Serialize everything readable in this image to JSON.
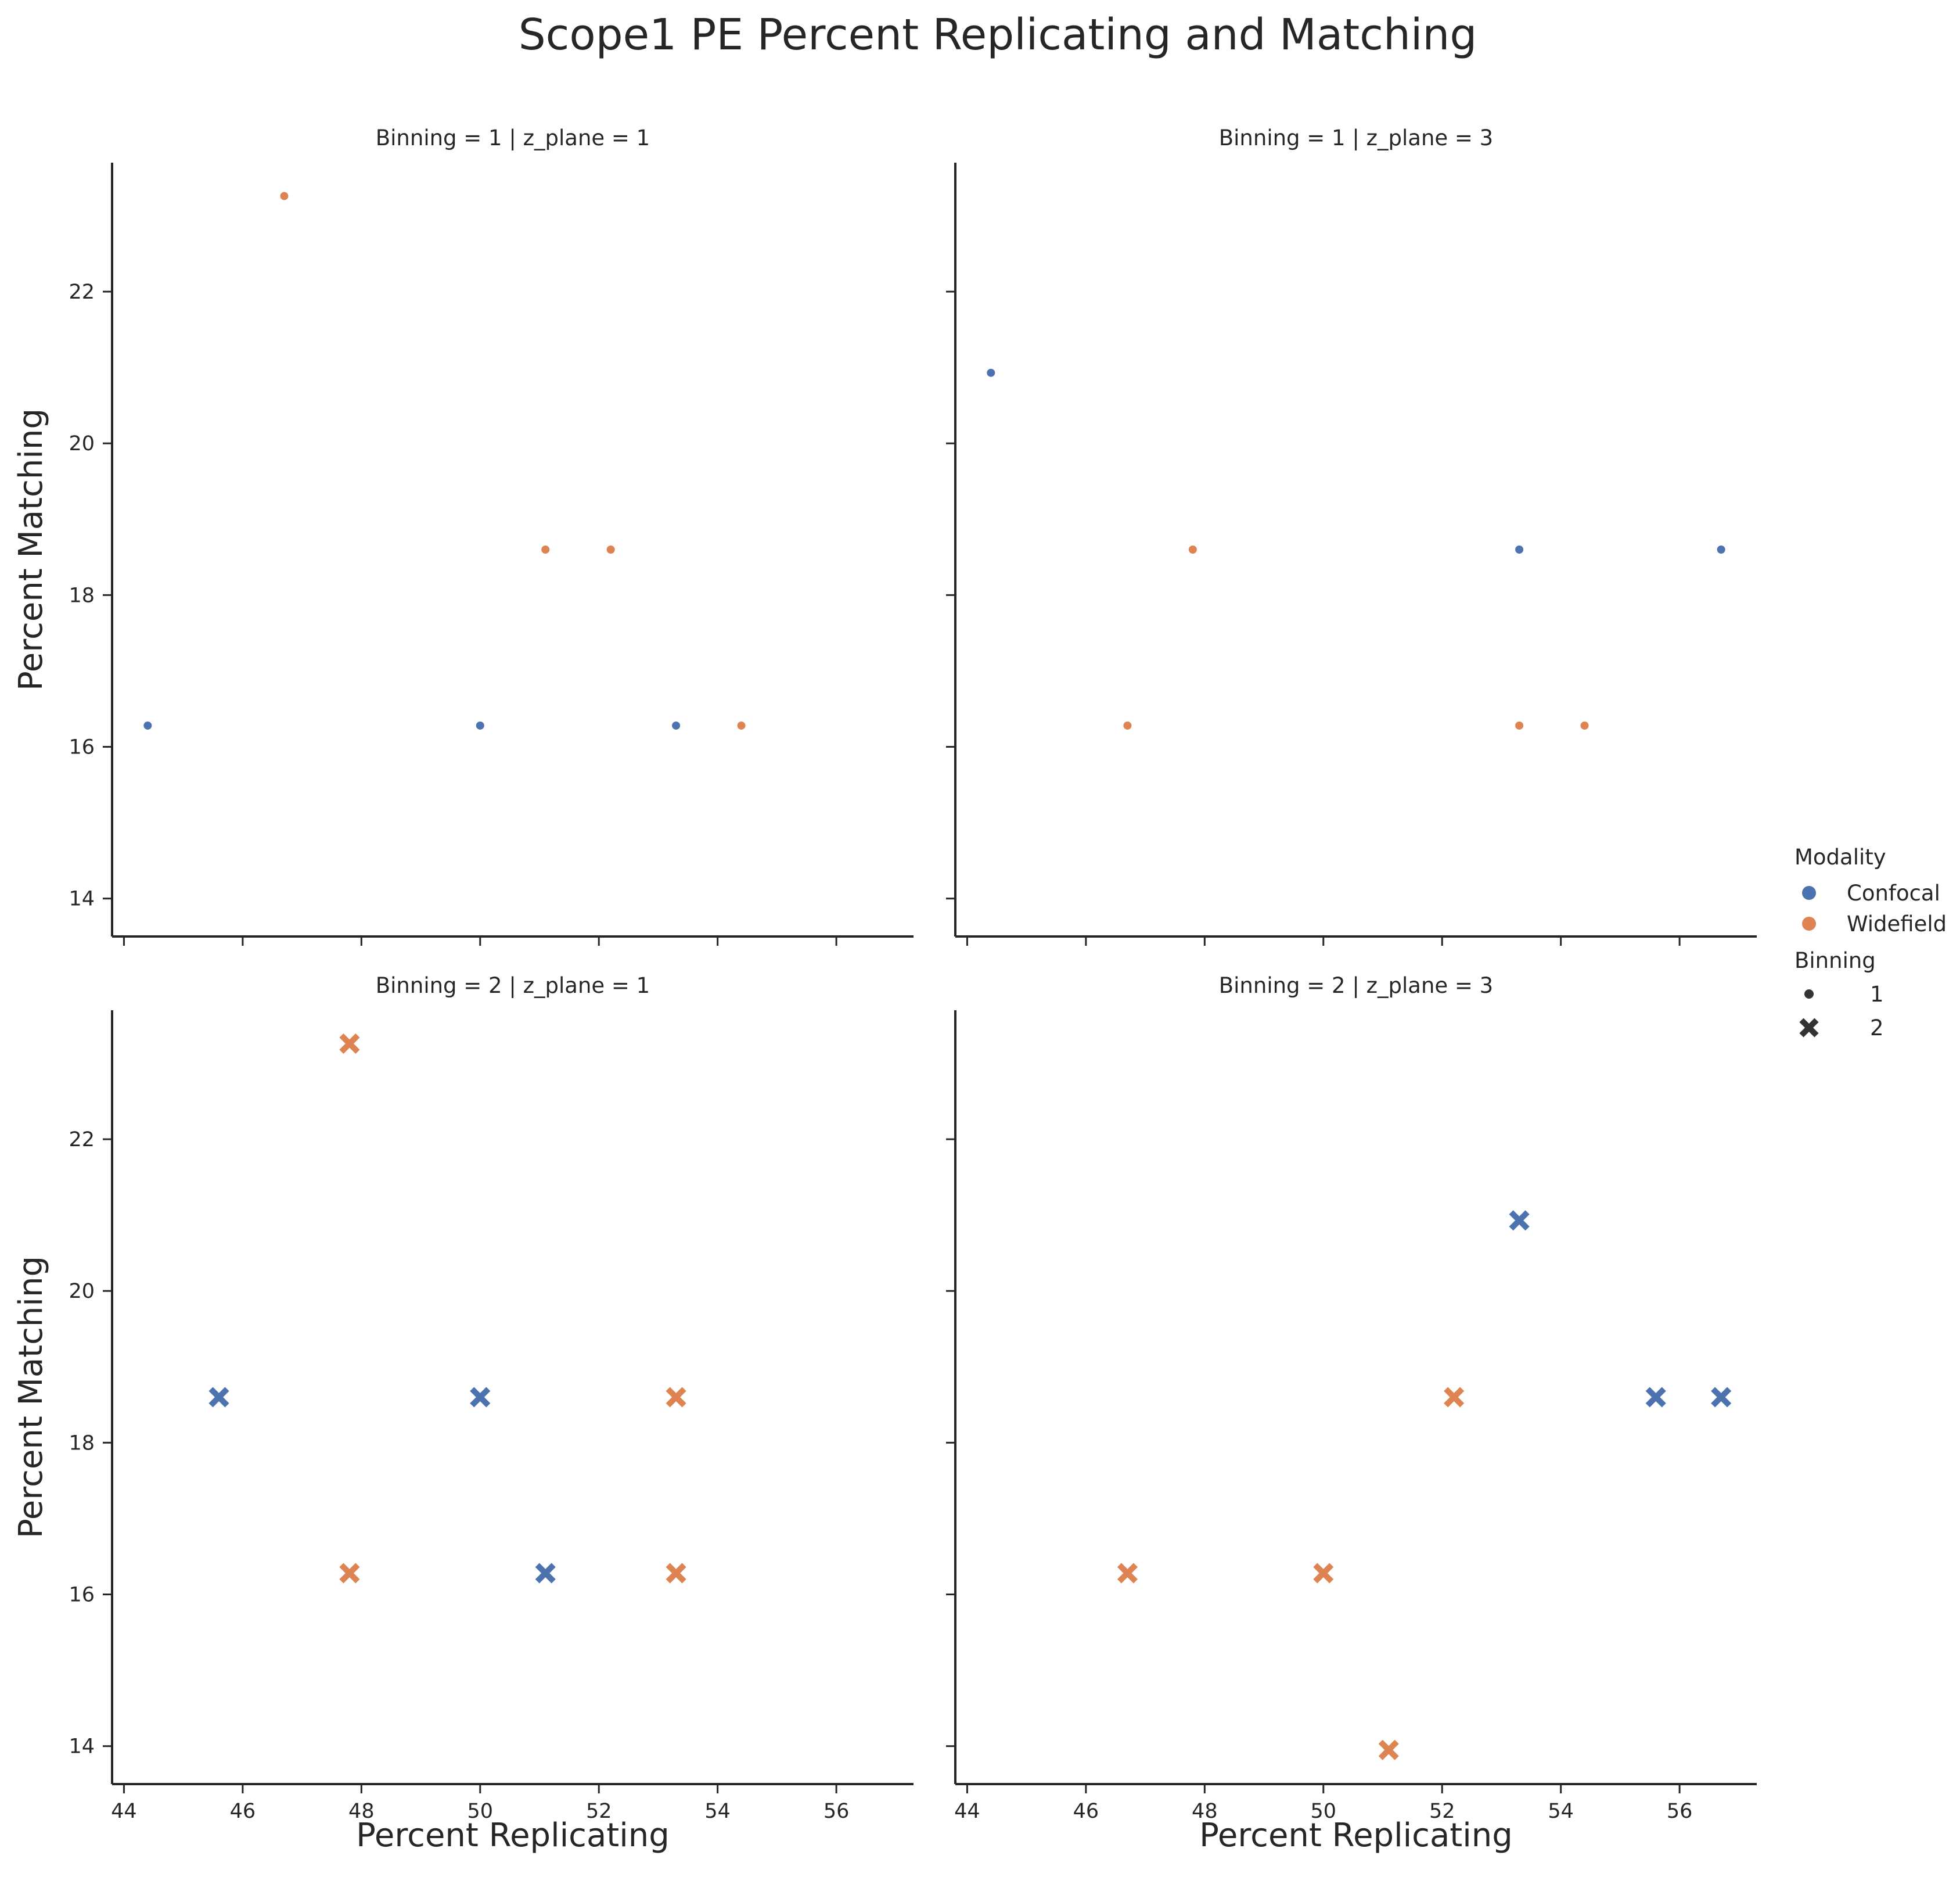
{
  "chart_data": {
    "type": "scatter",
    "title": "Scope1 PE Percent Replicating and Matching",
    "xlabel": "Percent Replicating",
    "ylabel": "Percent Matching",
    "xlim": [
      43.8,
      57.3
    ],
    "ylim": [
      13.5,
      23.7
    ],
    "xticks": [
      44,
      46,
      48,
      50,
      52,
      54,
      56
    ],
    "yticks": [
      14,
      16,
      18,
      20,
      22
    ],
    "grid": false,
    "colors": {
      "Confocal": "#4c72b0",
      "Widefield": "#dd8452"
    },
    "legend": {
      "placement": "right",
      "hue_title": "Modality",
      "hue_entries": [
        "Confocal",
        "Widefield"
      ],
      "style_title": "Binning",
      "style_entries": [
        "1",
        "2"
      ]
    },
    "facets": [
      {
        "title": "Binning = 1 | z_plane = 1",
        "binning": "1",
        "points": [
          {
            "modality": "Widefield",
            "x": 46.7,
            "y": 23.26
          },
          {
            "modality": "Confocal",
            "x": 44.4,
            "y": 16.28
          },
          {
            "modality": "Confocal",
            "x": 50.0,
            "y": 16.28
          },
          {
            "modality": "Widefield",
            "x": 51.1,
            "y": 18.6
          },
          {
            "modality": "Widefield",
            "x": 52.2,
            "y": 18.6
          },
          {
            "modality": "Confocal",
            "x": 53.3,
            "y": 16.28
          },
          {
            "modality": "Widefield",
            "x": 54.4,
            "y": 16.28
          }
        ]
      },
      {
        "title": "Binning = 1 | z_plane = 3",
        "binning": "1",
        "points": [
          {
            "modality": "Confocal",
            "x": 44.4,
            "y": 20.93
          },
          {
            "modality": "Widefield",
            "x": 47.8,
            "y": 18.6
          },
          {
            "modality": "Widefield",
            "x": 46.7,
            "y": 16.28
          },
          {
            "modality": "Confocal",
            "x": 53.3,
            "y": 18.6
          },
          {
            "modality": "Confocal",
            "x": 56.7,
            "y": 18.6
          },
          {
            "modality": "Widefield",
            "x": 53.3,
            "y": 16.28
          },
          {
            "modality": "Widefield",
            "x": 54.4,
            "y": 16.28
          }
        ]
      },
      {
        "title": "Binning = 2 | z_plane = 1",
        "binning": "2",
        "points": [
          {
            "modality": "Widefield",
            "x": 47.8,
            "y": 23.26
          },
          {
            "modality": "Confocal",
            "x": 45.6,
            "y": 18.6
          },
          {
            "modality": "Confocal",
            "x": 50.0,
            "y": 18.6
          },
          {
            "modality": "Widefield",
            "x": 53.3,
            "y": 18.6
          },
          {
            "modality": "Widefield",
            "x": 47.8,
            "y": 16.28
          },
          {
            "modality": "Confocal",
            "x": 51.1,
            "y": 16.28
          },
          {
            "modality": "Widefield",
            "x": 53.3,
            "y": 16.28
          }
        ]
      },
      {
        "title": "Binning = 2 | z_plane = 3",
        "binning": "2",
        "points": [
          {
            "modality": "Confocal",
            "x": 53.3,
            "y": 20.93
          },
          {
            "modality": "Widefield",
            "x": 52.2,
            "y": 18.6
          },
          {
            "modality": "Confocal",
            "x": 55.6,
            "y": 18.6
          },
          {
            "modality": "Confocal",
            "x": 56.7,
            "y": 18.6
          },
          {
            "modality": "Widefield",
            "x": 46.7,
            "y": 16.28
          },
          {
            "modality": "Widefield",
            "x": 50.0,
            "y": 16.28
          },
          {
            "modality": "Widefield",
            "x": 51.1,
            "y": 13.95
          }
        ]
      }
    ]
  }
}
